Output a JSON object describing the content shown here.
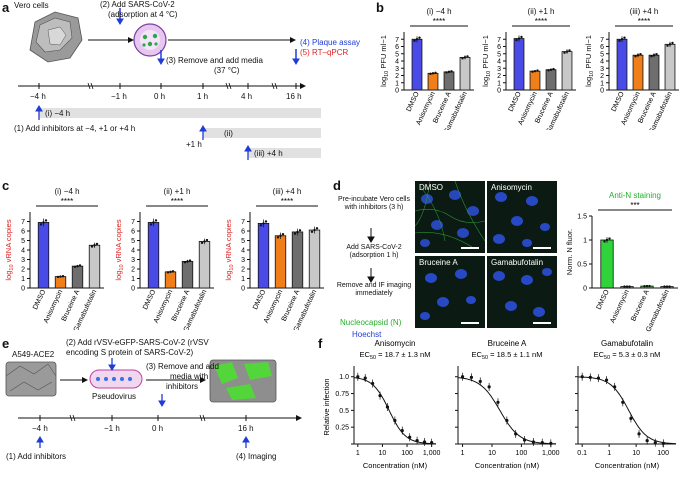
{
  "panels": {
    "a": "a",
    "b": "b",
    "c": "c",
    "d": "d",
    "e": "e",
    "f": "f"
  },
  "panel_a": {
    "cells": "Vero cells",
    "step2": "(2) Add SARS-CoV-2",
    "step2b": "(adsorption at 4 °C)",
    "step3": "(3) Remove and add media",
    "step3b": "(37 °C)",
    "step4": "(4) Plaque assay",
    "step5": "(5) RT–qPCR",
    "ticks": [
      "−4 h",
      "−1 h",
      "0 h",
      "1 h",
      "4 h",
      "16 h"
    ],
    "step1": "(1) Add inhibitors at −4, +1 or +4 h",
    "bar1": "(i) −4 h",
    "bar2": "(ii)",
    "bar2b": "+1 h",
    "bar3": "(iii) +4 h"
  },
  "panel_d": {
    "s1": "Pre-incubate Vero cells with inhibitors (3 h)",
    "s2": "Add SARS-CoV-2 (adsorption 1 h)",
    "s3": "Remove and IF imaging immediately",
    "legend1": "Nucleocapsid (N)",
    "legend2": "Hoechst",
    "img_labels": [
      "DMSO",
      "Anisomycin",
      "Bruceine A",
      "Gamabufotalin"
    ],
    "bar_title": "Anti-N staining",
    "ylabel": "Norm. N fluor.",
    "sig": "***"
  },
  "panel_e": {
    "cells": "A549-ACE2",
    "step2": "(2) Add rVSV-eGFP-SARS-CoV-2 (rVSV",
    "step2b": "encoding S protein of SARS-CoV-2)",
    "step3": "(3) Remove and add",
    "step3b": "media with",
    "step3c": "inhibitors",
    "pseudo": "Pseudovirus",
    "ticks": [
      "−4 h",
      "−1 h",
      "0 h",
      "16 h"
    ],
    "step1": "(1) Add inhibitors",
    "step4": "(4) Imaging"
  },
  "colors": {
    "dmso": "#4a4ae6",
    "aniso": "#f07f1a",
    "bruce": "#6e6e6e",
    "gama": "#c8c8c8",
    "green": "#22b02a"
  },
  "chart_data": [
    {
      "id": "b-i",
      "type": "bar",
      "title": "(i) −4 h",
      "ylabel": "log10 PFU ml−1",
      "categories": [
        "DMSO",
        "Anisomycin",
        "Bruceine A",
        "Gamabufotalin"
      ],
      "values": [
        7.0,
        2.3,
        2.5,
        4.5
      ],
      "ylim": [
        0,
        8
      ],
      "yticks": [
        0,
        1,
        2,
        3,
        4,
        5,
        6,
        7
      ],
      "sig": "****"
    },
    {
      "id": "b-ii",
      "type": "bar",
      "title": "(ii) +1 h",
      "ylabel": "log10 PFU ml−1",
      "categories": [
        "DMSO",
        "Anisomycin",
        "Bruceine A",
        "Gamabufotalin"
      ],
      "values": [
        7.1,
        2.6,
        2.8,
        5.3
      ],
      "ylim": [
        0,
        8
      ],
      "yticks": [
        0,
        1,
        2,
        3,
        4,
        5,
        6,
        7
      ],
      "sig": "****"
    },
    {
      "id": "b-iii",
      "type": "bar",
      "title": "(iii) +4 h",
      "ylabel": "log10 PFU ml−1",
      "categories": [
        "DMSO",
        "Anisomycin",
        "Bruceine A",
        "Gamabufotalin"
      ],
      "values": [
        7.0,
        4.8,
        4.8,
        6.3
      ],
      "ylim": [
        0,
        8
      ],
      "yticks": [
        0,
        1,
        2,
        3,
        4,
        5,
        6,
        7
      ],
      "sig": "****"
    },
    {
      "id": "c-i",
      "type": "bar",
      "title": "(i) −4 h",
      "ylabel": "log10 vRNA copies",
      "categories": [
        "DMSO",
        "Anisomycin",
        "Bruceine A",
        "Gamabufotalin"
      ],
      "values": [
        6.9,
        1.2,
        2.3,
        4.5
      ],
      "ylim": [
        0,
        8
      ],
      "yticks": [
        0,
        1,
        2,
        3,
        4,
        5,
        6,
        7
      ],
      "sig": "****"
    },
    {
      "id": "c-ii",
      "type": "bar",
      "title": "(ii) +1 h",
      "ylabel": "log10 vRNA copies",
      "categories": [
        "DMSO",
        "Anisomycin",
        "Bruceine A",
        "Gamabufotalin"
      ],
      "values": [
        6.9,
        1.7,
        2.8,
        4.9
      ],
      "ylim": [
        0,
        8
      ],
      "yticks": [
        0,
        1,
        2,
        3,
        4,
        5,
        6,
        7
      ],
      "sig": "****"
    },
    {
      "id": "c-iii",
      "type": "bar",
      "title": "(iii) +4 h",
      "ylabel": "log10 vRNA copies",
      "categories": [
        "DMSO",
        "Anisomycin",
        "Bruceine A",
        "Gamabufotalin"
      ],
      "values": [
        6.8,
        5.5,
        5.9,
        6.1
      ],
      "ylim": [
        0,
        8
      ],
      "yticks": [
        0,
        1,
        2,
        3,
        4,
        5,
        6,
        7
      ],
      "sig": "****"
    },
    {
      "id": "d-bar",
      "type": "bar",
      "title": "Anti-N staining",
      "ylabel": "Norm. N fluor.",
      "categories": [
        "DMSO",
        "Anisomycin",
        "Bruceine A",
        "Gamabufotalin"
      ],
      "values": [
        1.0,
        0.03,
        0.04,
        0.03
      ],
      "ylim": [
        0,
        1.5
      ],
      "yticks": [
        0,
        0.5,
        1.0,
        1.5
      ],
      "sig": "***"
    },
    {
      "id": "f-aniso",
      "type": "line",
      "title": "Anisomycin",
      "annotation": "EC50 = 18.7 ± 1.3 nM",
      "xlabel": "Concentration (nM)",
      "ylabel": "Relative infection",
      "xscale": "log",
      "xlim": [
        0.7,
        1500
      ],
      "ylim": [
        0,
        1.1
      ],
      "xticks": [
        1,
        10,
        100,
        1000
      ],
      "xticklabels": [
        "1",
        "10",
        "100",
        "1,000"
      ],
      "yticks": [
        0,
        0.25,
        0.5,
        0.75,
        1.0
      ],
      "x": [
        1,
        2,
        4,
        8,
        16,
        32,
        64,
        128,
        256,
        512,
        1000
      ],
      "y": [
        1.0,
        0.98,
        0.9,
        0.72,
        0.55,
        0.35,
        0.2,
        0.1,
        0.05,
        0.03,
        0.02
      ],
      "ec50": 18.7
    },
    {
      "id": "f-bruce",
      "type": "line",
      "title": "Bruceine A",
      "annotation": "EC50 = 18.5 ± 1.1 nM",
      "xlabel": "Concentration (nM)",
      "ylabel": "",
      "xscale": "log",
      "xlim": [
        0.7,
        1500
      ],
      "ylim": [
        0,
        1.1
      ],
      "xticks": [
        1,
        10,
        100,
        1000
      ],
      "xticklabels": [
        "1",
        "10",
        "100",
        "1,000"
      ],
      "yticks": [
        0,
        0.25,
        0.5,
        0.75,
        1.0
      ],
      "x": [
        1,
        2,
        4,
        8,
        16,
        32,
        64,
        128,
        256,
        512,
        1000
      ],
      "y": [
        1.0,
        0.99,
        0.93,
        0.85,
        0.62,
        0.35,
        0.15,
        0.06,
        0.03,
        0.02,
        0.01
      ],
      "ec50": 18.5
    },
    {
      "id": "f-gama",
      "type": "line",
      "title": "Gamabufotalin",
      "annotation": "EC50 = 5.3 ± 0.3 nM",
      "xlabel": "Concentration (nM)",
      "ylabel": "",
      "xscale": "log",
      "xlim": [
        0.07,
        300
      ],
      "ylim": [
        0,
        1.1
      ],
      "xticks": [
        0.1,
        1,
        10,
        100
      ],
      "xticklabels": [
        "0.1",
        "1",
        "10",
        "100"
      ],
      "yticks": [
        0,
        0.25,
        0.5,
        0.75,
        1.0
      ],
      "x": [
        0.1,
        0.2,
        0.4,
        0.8,
        1.6,
        3.2,
        6.4,
        12.8,
        25.6,
        51.2,
        102.4
      ],
      "y": [
        1.0,
        0.99,
        0.98,
        0.95,
        0.85,
        0.62,
        0.38,
        0.15,
        0.05,
        0.02,
        0.01
      ],
      "ec50": 5.3
    }
  ]
}
